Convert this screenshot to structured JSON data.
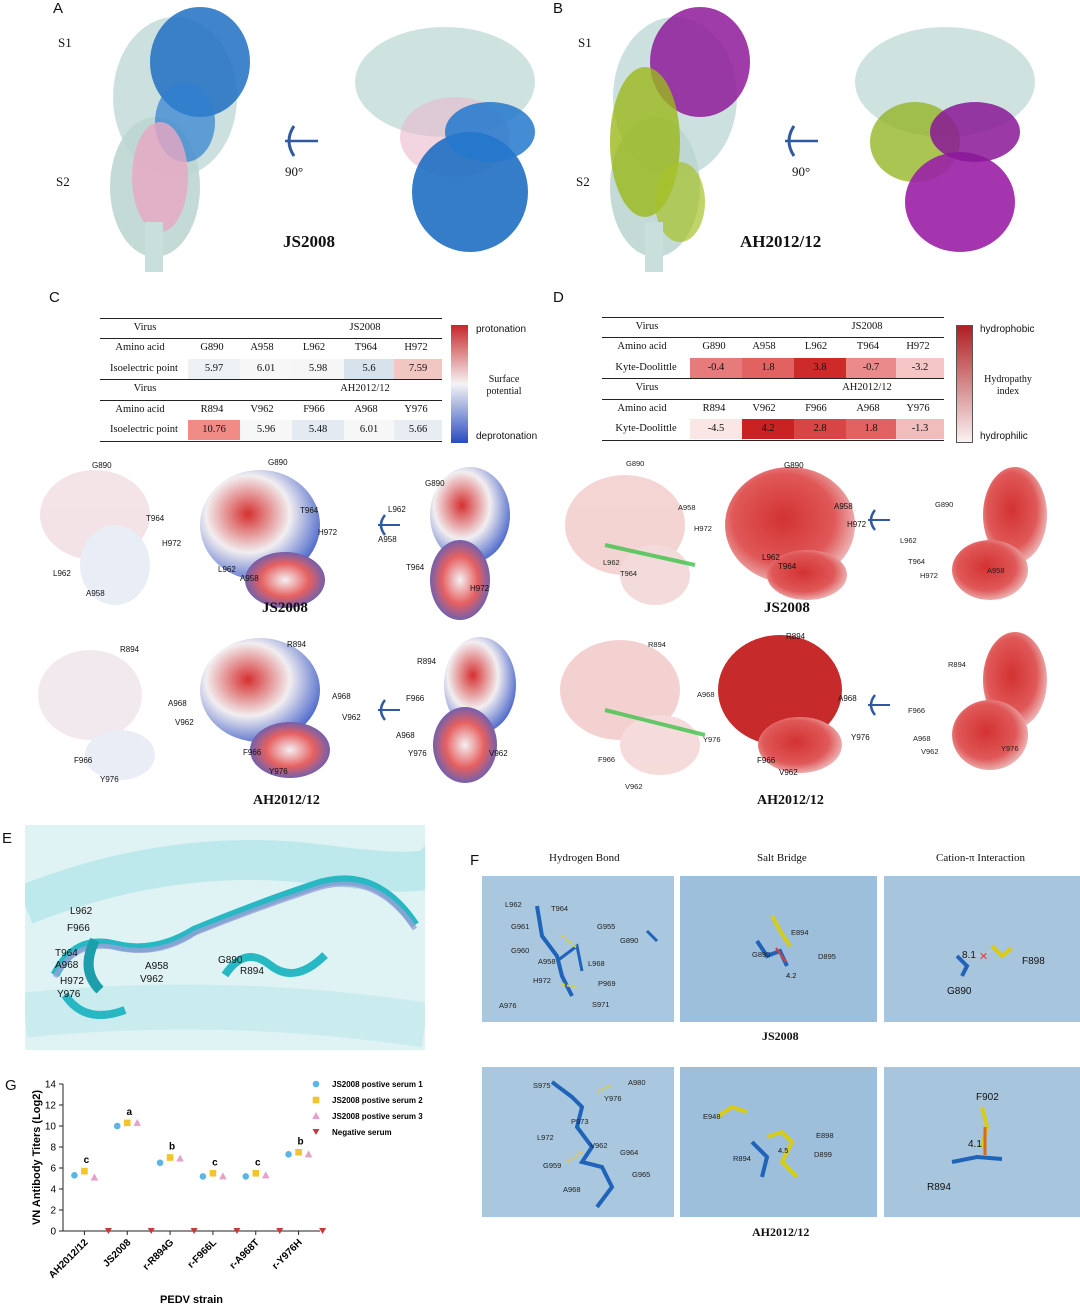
{
  "panels": {
    "A": "A",
    "B": "B",
    "C": "C",
    "D": "D",
    "E": "E",
    "F": "F",
    "G": "G"
  },
  "panelA": {
    "s1": "S1",
    "s2": "S2",
    "rotation": "90°",
    "strain": "JS2008"
  },
  "panelB": {
    "s1": "S1",
    "s2": "S2",
    "rotation": "90°",
    "strain": "AH2012/12"
  },
  "tableC": {
    "virus_label": "Virus",
    "amino_label": "Amino acid",
    "metric_label": "Isoelectric point",
    "strain1": "JS2008",
    "res1": [
      "G890",
      "A958",
      "L962",
      "T964",
      "H972"
    ],
    "val1": [
      "5.97",
      "6.01",
      "5.98",
      "5.6",
      "7.59"
    ],
    "strain2": "AH2012/12",
    "res2": [
      "R894",
      "V962",
      "F966",
      "A968",
      "Y976"
    ],
    "val2": [
      "10.76",
      "5.96",
      "5.48",
      "6.01",
      "5.66"
    ],
    "colors1": [
      "#eef1f4",
      "#f7f7f7",
      "#f6f6f6",
      "#d6e2ec",
      "#f2c7c2"
    ],
    "colors2": [
      "#f08c85",
      "#f7f7f7",
      "#e3eaf1",
      "#f7f7f7",
      "#e7edf3"
    ],
    "legend_top": "protonation",
    "legend_mid": "Surface potential",
    "legend_bottom": "deprotonation"
  },
  "tableD": {
    "virus_label": "Virus",
    "amino_label": "Amino acid",
    "metric_label": "Kyte-Doolittle",
    "strain1": "JS2008",
    "res1": [
      "G890",
      "A958",
      "L962",
      "T964",
      "H972"
    ],
    "val1": [
      "-0.4",
      "1.8",
      "3.8",
      "-0.7",
      "-3.2"
    ],
    "strain2": "AH2012/12",
    "res2": [
      "R894",
      "V962",
      "F966",
      "A968",
      "Y976"
    ],
    "val2": [
      "-4.5",
      "4.2",
      "2.8",
      "1.8",
      "-1.3"
    ],
    "colors1": [
      "#e77a7a",
      "#e26262",
      "#cf2a2a",
      "#ea8a8a",
      "#f4c6c6"
    ],
    "colors2": [
      "#fbe6e6",
      "#c82222",
      "#d84545",
      "#e26262",
      "#f2bcbc"
    ],
    "legend_top": "hydrophobic",
    "legend_mid": "Hydropathy index",
    "legend_bottom": "hydrophilic"
  },
  "surfC": {
    "js_labels": [
      "G890",
      "T964",
      "H972",
      "L962",
      "A958"
    ],
    "js_labels_b": [
      "G890",
      "T964",
      "H972",
      "L962",
      "A958"
    ],
    "js_labels_c": [
      "G890",
      "L962",
      "A958",
      "T964",
      "H972"
    ],
    "strain1": "JS2008",
    "ah_labels": [
      "R894",
      "A968",
      "V962",
      "F966",
      "Y976"
    ],
    "ah_labels_b": [
      "R894",
      "A968",
      "V962",
      "F966",
      "Y976"
    ],
    "ah_labels_c": [
      "R894",
      "F966",
      "A968",
      "Y976",
      "V962"
    ],
    "strain2": "AH2012/12"
  },
  "surfD": {
    "js_labels": [
      "G890",
      "A958",
      "H972",
      "L962",
      "T964"
    ],
    "js_labels_b": [
      "G890",
      "A958",
      "H972",
      "L962",
      "T964"
    ],
    "js_labels_c": [
      "G890",
      "H972",
      "L962",
      "T964",
      "H972",
      "A958"
    ],
    "strain1": "JS2008",
    "ah_labels": [
      "R894",
      "A968",
      "Y976",
      "F966",
      "V962"
    ],
    "ah_labels_b": [
      "R894",
      "A968",
      "Y976",
      "F966",
      "V962"
    ],
    "ah_labels_c": [
      "R894",
      "F966",
      "A968",
      "V962",
      "Y976"
    ],
    "strain2": "AH2012/12"
  },
  "panelE": {
    "labels": [
      "L962",
      "F966",
      "T964",
      "A968",
      "H972",
      "Y976",
      "A958",
      "V962",
      "G890",
      "R894"
    ]
  },
  "panelF": {
    "headers": [
      "Hydrogen Bond",
      "Salt Bridge",
      "Cation-π Interaction"
    ],
    "js_hb": [
      "L962",
      "T964",
      "G961",
      "G955",
      "G890",
      "G960",
      "A958",
      "L968",
      "H972",
      "P969",
      "A976",
      "S971"
    ],
    "js_sb": [
      "E894",
      "G890",
      "D895",
      "4.2"
    ],
    "js_cp": [
      "8.1",
      "F898",
      "G890"
    ],
    "strain1": "JS2008",
    "ah_hb": [
      "S975",
      "A980",
      "Y976",
      "P973",
      "L972",
      "V962",
      "G964",
      "G959",
      "G965",
      "A968"
    ],
    "ah_sb": [
      "E948",
      "E898",
      "4.5",
      "R894",
      "D899"
    ],
    "ah_cp": [
      "F902",
      "4.1",
      "R894"
    ],
    "strain2": "AH2012/12"
  },
  "chart_data": {
    "type": "scatter",
    "ylabel": "VN Antibody Titers (Log2)",
    "xlabel": "PEDV strain",
    "ylim": [
      0,
      14
    ],
    "yticks": [
      "0",
      "2",
      "4",
      "6",
      "8",
      "10",
      "12",
      "14"
    ],
    "categories": [
      "AH2012/12",
      "JS2008",
      "r-R894G",
      "r-F966L",
      "r-A968T",
      "r-Y976H"
    ],
    "significance": [
      "c",
      "a",
      "b",
      "c",
      "c",
      "b"
    ],
    "series": [
      {
        "name": "JS2008 postive serum 1",
        "color": "#5bb5e6",
        "marker": "circle",
        "values": [
          5.3,
          10.0,
          6.5,
          5.2,
          5.2,
          7.3
        ]
      },
      {
        "name": "JS2008 postive serum 2",
        "color": "#f2c42e",
        "marker": "square",
        "values": [
          5.7,
          10.3,
          7.0,
          5.5,
          5.5,
          7.5
        ]
      },
      {
        "name": "JS2008 postive serum 3",
        "color": "#e7a0c8",
        "marker": "triangle",
        "values": [
          5.1,
          10.3,
          6.9,
          5.2,
          5.3,
          7.3
        ]
      },
      {
        "name": "Negative serum",
        "color": "#c23a3a",
        "marker": "triangle-down",
        "values": [
          0,
          0,
          0,
          0,
          0,
          0
        ]
      }
    ]
  }
}
